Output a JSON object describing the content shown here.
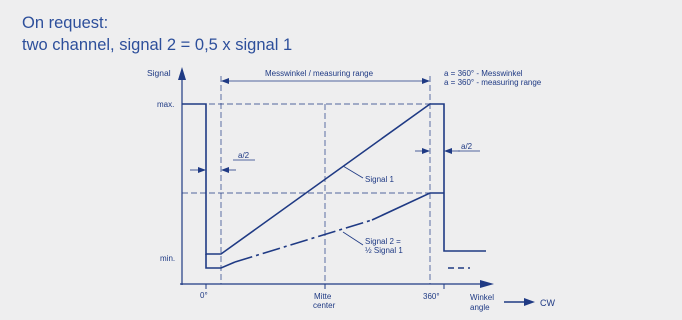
{
  "header": {
    "line1": "On request:",
    "line2": "two channel, signal 2 = 0,5 x signal 1"
  },
  "diagram": {
    "y_axis_label": "Signal",
    "y_max_label": "max.",
    "y_min_label": "min.",
    "x_label_zero": "0°",
    "x_label_center_de": "Mitte",
    "x_label_center_en": "center",
    "x_label_360": "360°",
    "x_axis_label_de": "Winkel",
    "x_axis_label_en": "angle",
    "direction_label": "CW",
    "range_label": "Messwinkel / measuring range",
    "note_line1": "a = 360° -  Messwinkel",
    "note_line2": "a = 360° -  measuring range",
    "half_a_left": "a/2",
    "half_a_right": "a/2",
    "signal1_label": "Signal 1",
    "signal2_label_line1": "Signal 2 =",
    "signal2_label_line2": "½ Signal 1",
    "colors": {
      "line": "#1f3a84",
      "background": "#eeeeef",
      "header": "#2d4f9b"
    }
  }
}
